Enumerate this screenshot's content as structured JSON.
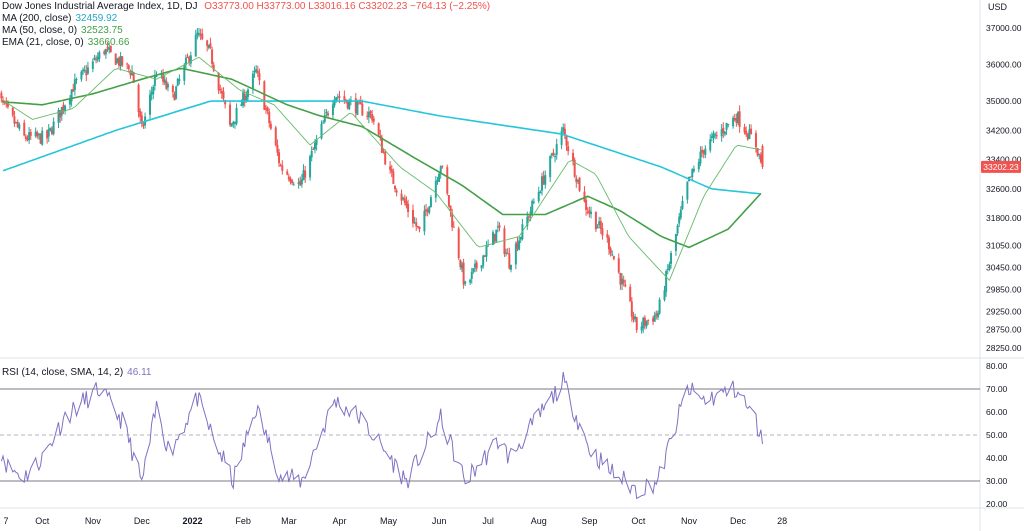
{
  "legend": {
    "symbol": "Dow Jones Industrial Average Index, 1D, DJ",
    "open": "O33773.00",
    "high": "H33773.00",
    "low": "L33016.16",
    "close": "C33202.23",
    "change": "−764.13 (−2.25%)",
    "ma200_label": "MA (200, close)",
    "ma200_value": "32459.92",
    "ma50_label": "MA (50, close, 0)",
    "ma50_value": "32523.75",
    "ema21_label": "EMA (21, close, 0)",
    "ema21_value": "33660.66",
    "rsi_label": "RSI (14, close, SMA, 14, 2)",
    "rsi_value": "46.11"
  },
  "colors": {
    "up": "#26a69a",
    "down": "#ef5350",
    "ma200": "#26c6da",
    "ma50": "#43a047",
    "ema21": "#66bb6a",
    "rsi": "#7e72c4",
    "last_price_tag": "#ef5350"
  },
  "chart_data": [
    {
      "type": "candlestick",
      "currency": "USD",
      "last_price": "33202.23",
      "y_ticks": [
        "37000.00",
        "36000.00",
        "35000.00",
        "34200.00",
        "33400.00",
        "32600.00",
        "31800.00",
        "31050.00",
        "30450.00",
        "29850.00",
        "29250.00",
        "28750.00",
        "28250.00"
      ],
      "y_tick_values": [
        37000,
        36000,
        35000,
        34200,
        33400,
        32600,
        31800,
        31050,
        30450,
        29850,
        29250,
        28750,
        28250
      ],
      "x_tick_labels": [
        "7",
        "Oct",
        "Nov",
        "Dec",
        "2022",
        "Feb",
        "Mar",
        "Apr",
        "May",
        "Jun",
        "Jul",
        "Aug",
        "Sep",
        "Oct",
        "Nov",
        "Dec",
        "28"
      ],
      "x_tick_dates": [
        "2021-09-07",
        "2021-10-01",
        "2021-11-01",
        "2021-12-01",
        "2022-01-01",
        "2022-02-01",
        "2022-03-01",
        "2022-04-01",
        "2022-05-01",
        "2022-06-01",
        "2022-07-01",
        "2022-08-01",
        "2022-09-01",
        "2022-10-01",
        "2022-11-01",
        "2022-12-01",
        "2022-12-28"
      ],
      "close_anchors": [
        [
          "2021-09-01",
          35300
        ],
        [
          "2021-09-20",
          34000
        ],
        [
          "2021-10-04",
          34000
        ],
        [
          "2021-10-20",
          35400
        ],
        [
          "2021-11-08",
          36400
        ],
        [
          "2021-11-25",
          35800
        ],
        [
          "2021-12-01",
          34200
        ],
        [
          "2021-12-10",
          35800
        ],
        [
          "2021-12-20",
          35100
        ],
        [
          "2022-01-04",
          36800
        ],
        [
          "2022-01-12",
          36300
        ],
        [
          "2022-01-24",
          34300
        ],
        [
          "2022-02-09",
          35800
        ],
        [
          "2022-02-24",
          33200
        ],
        [
          "2022-03-08",
          32700
        ],
        [
          "2022-03-29",
          35200
        ],
        [
          "2022-04-21",
          34600
        ],
        [
          "2022-05-02",
          33000
        ],
        [
          "2022-05-20",
          31400
        ],
        [
          "2022-06-02",
          33300
        ],
        [
          "2022-06-17",
          29900
        ],
        [
          "2022-07-07",
          31500
        ],
        [
          "2022-07-14",
          30600
        ],
        [
          "2022-08-16",
          34200
        ],
        [
          "2022-08-29",
          32200
        ],
        [
          "2022-09-13",
          31100
        ],
        [
          "2022-09-30",
          28800
        ],
        [
          "2022-10-13",
          29200
        ],
        [
          "2022-10-31",
          32700
        ],
        [
          "2022-11-10",
          33700
        ],
        [
          "2022-11-30",
          34600
        ],
        [
          "2022-12-12",
          33800
        ],
        [
          "2022-12-16",
          33202.23
        ]
      ],
      "ma200_anchors": [
        [
          "2021-09-01",
          33000
        ],
        [
          "2021-11-15",
          34200
        ],
        [
          "2022-01-12",
          35000
        ],
        [
          "2022-02-28",
          35000
        ],
        [
          "2022-04-15",
          35000
        ],
        [
          "2022-06-01",
          34600
        ],
        [
          "2022-08-15",
          34100
        ],
        [
          "2022-10-15",
          33200
        ],
        [
          "2022-11-15",
          32600
        ],
        [
          "2022-12-16",
          32460
        ]
      ],
      "ma50_anchors": [
        [
          "2021-09-01",
          35000
        ],
        [
          "2021-10-01",
          34900
        ],
        [
          "2021-11-01",
          35200
        ],
        [
          "2021-12-01",
          35600
        ],
        [
          "2021-12-25",
          35900
        ],
        [
          "2022-01-25",
          35600
        ],
        [
          "2022-02-28",
          34900
        ],
        [
          "2022-03-20",
          34600
        ],
        [
          "2022-04-15",
          34300
        ],
        [
          "2022-05-15",
          33500
        ],
        [
          "2022-06-15",
          32700
        ],
        [
          "2022-07-10",
          31900
        ],
        [
          "2022-08-05",
          31900
        ],
        [
          "2022-08-31",
          32400
        ],
        [
          "2022-09-20",
          32000
        ],
        [
          "2022-10-15",
          31300
        ],
        [
          "2022-11-01",
          31000
        ],
        [
          "2022-11-25",
          31500
        ],
        [
          "2022-12-16",
          32524
        ]
      ],
      "ema21_anchors": [
        [
          "2021-09-01",
          35200
        ],
        [
          "2021-09-25",
          34500
        ],
        [
          "2021-10-20",
          34800
        ],
        [
          "2021-11-15",
          35900
        ],
        [
          "2021-12-10",
          35600
        ],
        [
          "2022-01-05",
          36200
        ],
        [
          "2022-01-30",
          35300
        ],
        [
          "2022-02-20",
          34900
        ],
        [
          "2022-03-14",
          33800
        ],
        [
          "2022-04-08",
          34700
        ],
        [
          "2022-05-08",
          33200
        ],
        [
          "2022-05-30",
          32500
        ],
        [
          "2022-06-25",
          31000
        ],
        [
          "2022-07-20",
          31300
        ],
        [
          "2022-08-20",
          33400
        ],
        [
          "2022-09-05",
          33000
        ],
        [
          "2022-09-25",
          31300
        ],
        [
          "2022-10-20",
          30100
        ],
        [
          "2022-11-10",
          32400
        ],
        [
          "2022-11-30",
          33800
        ],
        [
          "2022-12-16",
          33661
        ]
      ]
    },
    {
      "type": "line",
      "title": "RSI (14, close, SMA, 14, 2)",
      "y_ticks": [
        "80.00",
        "70.00",
        "60.00",
        "50.00",
        "40.00",
        "30.00",
        "20.00"
      ],
      "y_tick_values": [
        80,
        70,
        60,
        50,
        40,
        30,
        20
      ],
      "upper_band": 70,
      "lower_band": 30,
      "middle_line": 50,
      "last_value": 46.11,
      "rsi_anchors": [
        [
          "2021-09-01",
          52
        ],
        [
          "2021-09-10",
          36
        ],
        [
          "2021-09-20",
          32
        ],
        [
          "2021-10-01",
          40
        ],
        [
          "2021-10-15",
          58
        ],
        [
          "2021-11-05",
          70
        ],
        [
          "2021-11-20",
          55
        ],
        [
          "2021-12-01",
          29
        ],
        [
          "2021-12-10",
          62
        ],
        [
          "2021-12-18",
          42
        ],
        [
          "2022-01-04",
          66
        ],
        [
          "2022-01-14",
          48
        ],
        [
          "2022-01-26",
          30
        ],
        [
          "2022-02-09",
          62
        ],
        [
          "2022-02-24",
          32
        ],
        [
          "2022-03-09",
          30
        ],
        [
          "2022-03-29",
          65
        ],
        [
          "2022-04-13",
          58
        ],
        [
          "2022-05-02",
          40
        ],
        [
          "2022-05-12",
          30
        ],
        [
          "2022-06-02",
          57
        ],
        [
          "2022-06-17",
          30
        ],
        [
          "2022-07-08",
          48
        ],
        [
          "2022-07-14",
          40
        ],
        [
          "2022-08-16",
          73
        ],
        [
          "2022-09-01",
          44
        ],
        [
          "2022-09-13",
          35
        ],
        [
          "2022-09-30",
          26
        ],
        [
          "2022-10-13",
          30
        ],
        [
          "2022-10-31",
          70
        ],
        [
          "2022-11-10",
          65
        ],
        [
          "2022-11-30",
          70
        ],
        [
          "2022-12-12",
          56
        ],
        [
          "2022-12-16",
          46.11
        ]
      ]
    }
  ]
}
